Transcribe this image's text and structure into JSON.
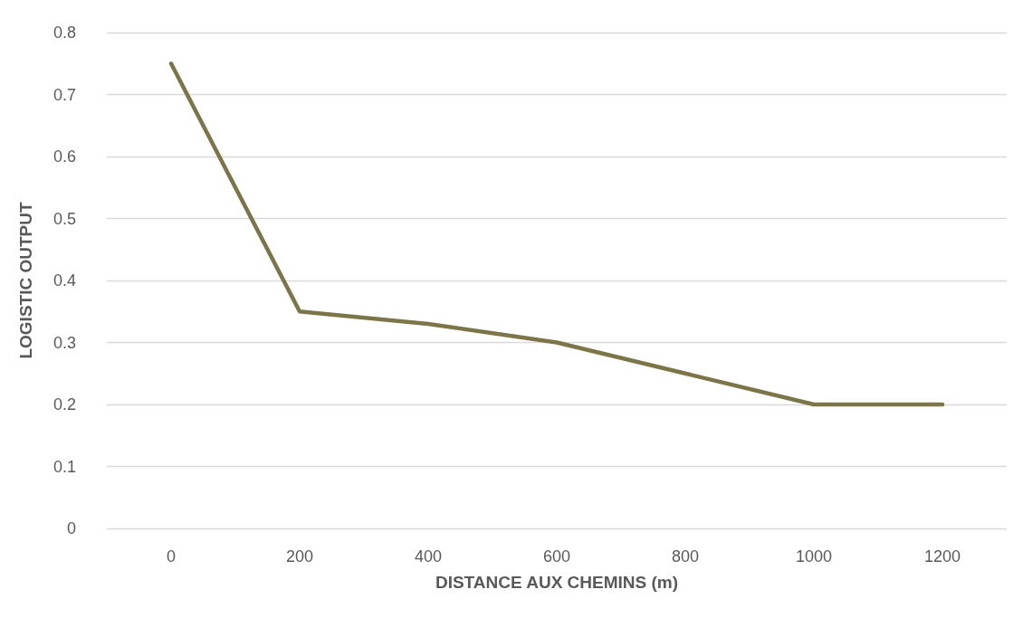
{
  "chart_data": {
    "type": "line",
    "xlabel": "DISTANCE AUX CHEMINS (m)",
    "ylabel": "LOGISTIC OUTPUT",
    "categories": [
      "0",
      "200",
      "400",
      "600",
      "800",
      "1000",
      "1200"
    ],
    "series": [
      {
        "color": "#7b7548",
        "values": [
          0.75,
          0.35,
          0.33,
          0.3,
          0.25,
          0.2,
          0.2
        ]
      }
    ],
    "ylim": [
      0,
      0.8
    ],
    "yticks": [
      0,
      0.1,
      0.2,
      0.3,
      0.4,
      0.5,
      0.6,
      0.7,
      0.8
    ],
    "grid": "y",
    "marker": "none",
    "line_style": "solid"
  }
}
